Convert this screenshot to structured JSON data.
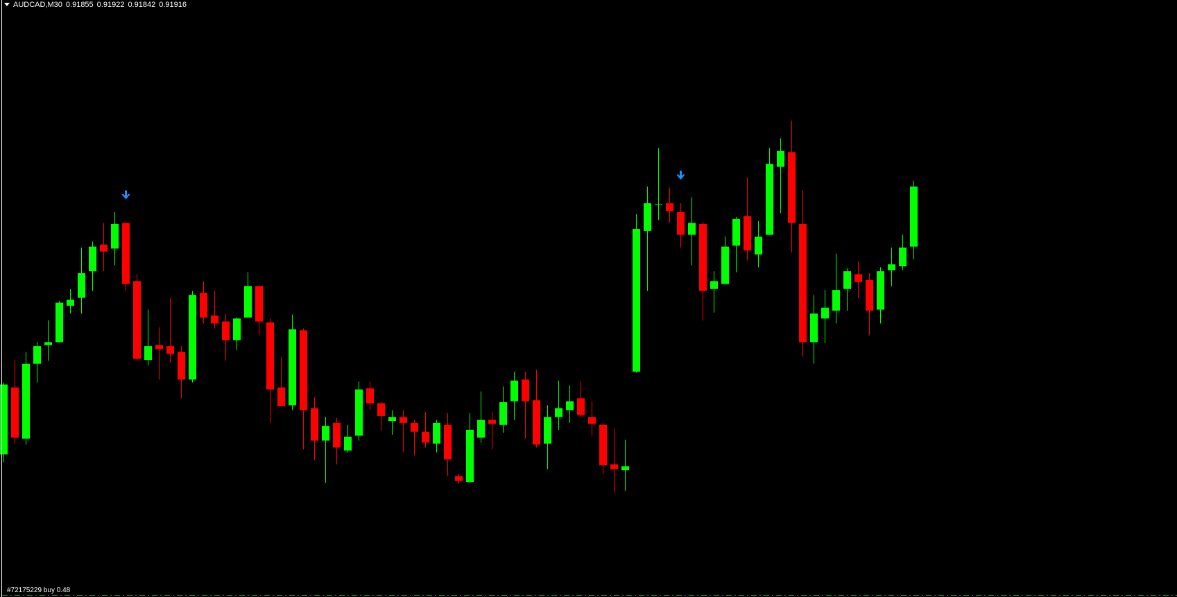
{
  "header": {
    "symbol_timeframe": "AUDCAD,M30",
    "open": "0.91855",
    "high": "0.91922",
    "low": "0.91842",
    "close": "0.91916"
  },
  "order_line": {
    "label": "#72175229 buy 0.48",
    "color": "#00c800"
  },
  "chart_data": {
    "type": "candlestick",
    "symbol": "AUDCAD",
    "timeframe": "M30",
    "ohlc_order": [
      "open",
      "high",
      "low",
      "close"
    ],
    "colors": {
      "bull": "#00ff00",
      "bear": "#ff0000",
      "signal_arrow": "#1e90ff",
      "background": "#000000"
    },
    "grid": false,
    "candles": [
      [
        0.91644,
        0.91717,
        0.91636,
        0.91715
      ],
      [
        0.91712,
        0.9174,
        0.91655,
        0.91661
      ],
      [
        0.9166,
        0.91748,
        0.91654,
        0.91736
      ],
      [
        0.91736,
        0.91758,
        0.91717,
        0.91754
      ],
      [
        0.91755,
        0.9178,
        0.91739,
        0.91758
      ],
      [
        0.91758,
        0.918,
        0.91758,
        0.91798
      ],
      [
        0.91795,
        0.91812,
        0.91787,
        0.91801
      ],
      [
        0.91803,
        0.91854,
        0.91787,
        0.91828
      ],
      [
        0.9183,
        0.9186,
        0.9181,
        0.91855
      ],
      [
        0.91857,
        0.91879,
        0.9183,
        0.9185
      ],
      [
        0.91853,
        0.9189,
        0.91836,
        0.91878
      ],
      [
        0.91879,
        0.91879,
        0.9181,
        0.91817
      ],
      [
        0.9182,
        0.91827,
        0.91739,
        0.91741
      ],
      [
        0.9174,
        0.91791,
        0.91734,
        0.91754
      ],
      [
        0.91755,
        0.91773,
        0.9172,
        0.91751
      ],
      [
        0.91754,
        0.91803,
        0.91737,
        0.91746
      ],
      [
        0.91748,
        0.91754,
        0.91701,
        0.9172
      ],
      [
        0.9172,
        0.9181,
        0.91717,
        0.91806
      ],
      [
        0.91808,
        0.9182,
        0.91777,
        0.91783
      ],
      [
        0.91785,
        0.9181,
        0.91772,
        0.91777
      ],
      [
        0.91779,
        0.91787,
        0.91739,
        0.9176
      ],
      [
        0.9176,
        0.91783,
        0.9175,
        0.91782
      ],
      [
        0.91783,
        0.91829,
        0.91783,
        0.91815
      ],
      [
        0.91815,
        0.91815,
        0.91765,
        0.91779
      ],
      [
        0.91778,
        0.91782,
        0.91676,
        0.9171
      ],
      [
        0.91712,
        0.91743,
        0.91693,
        0.91693
      ],
      [
        0.91694,
        0.91786,
        0.91689,
        0.91771
      ],
      [
        0.9177,
        0.91772,
        0.91649,
        0.91689
      ],
      [
        0.91691,
        0.91702,
        0.91638,
        0.91658
      ],
      [
        0.91658,
        0.91682,
        0.91615,
        0.91673
      ],
      [
        0.91676,
        0.91681,
        0.91634,
        0.91651
      ],
      [
        0.91648,
        0.91674,
        0.91646,
        0.91662
      ],
      [
        0.91663,
        0.91718,
        0.91658,
        0.9171
      ],
      [
        0.91711,
        0.91718,
        0.91689,
        0.91696
      ],
      [
        0.91696,
        0.91697,
        0.91668,
        0.91683
      ],
      [
        0.91678,
        0.91689,
        0.91664,
        0.91682
      ],
      [
        0.91682,
        0.91689,
        0.91646,
        0.91676
      ],
      [
        0.91676,
        0.91679,
        0.91643,
        0.91667
      ],
      [
        0.91667,
        0.91687,
        0.91651,
        0.91656
      ],
      [
        0.91655,
        0.91679,
        0.91646,
        0.91676
      ],
      [
        0.91674,
        0.91686,
        0.91622,
        0.91639
      ],
      [
        0.91622,
        0.91624,
        0.91614,
        0.91617
      ],
      [
        0.91616,
        0.91686,
        0.91615,
        0.91669
      ],
      [
        0.91661,
        0.91708,
        0.91656,
        0.91679
      ],
      [
        0.91679,
        0.91687,
        0.91649,
        0.91675
      ],
      [
        0.91674,
        0.91713,
        0.91666,
        0.91697
      ],
      [
        0.91698,
        0.91728,
        0.91679,
        0.91719
      ],
      [
        0.9172,
        0.91728,
        0.9166,
        0.91698
      ],
      [
        0.91699,
        0.9173,
        0.91651,
        0.91654
      ],
      [
        0.91655,
        0.91694,
        0.91629,
        0.91682
      ],
      [
        0.91682,
        0.91719,
        0.91669,
        0.91691
      ],
      [
        0.91689,
        0.91714,
        0.91676,
        0.91698
      ],
      [
        0.91701,
        0.91718,
        0.91682,
        0.91684
      ],
      [
        0.91682,
        0.91698,
        0.91663,
        0.91675
      ],
      [
        0.91674,
        0.91676,
        0.91624,
        0.91633
      ],
      [
        0.91634,
        0.9167,
        0.91605,
        0.91629
      ],
      [
        0.91628,
        0.91659,
        0.91607,
        0.91632
      ],
      [
        0.91728,
        0.91888,
        0.91727,
        0.91873
      ],
      [
        0.91871,
        0.91916,
        0.9181,
        0.91899
      ],
      [
        0.91898,
        0.91955,
        0.91882,
        0.91898
      ],
      [
        0.91899,
        0.91915,
        0.91879,
        0.91891
      ],
      [
        0.9189,
        0.91899,
        0.91854,
        0.91867
      ],
      [
        0.91867,
        0.91905,
        0.91836,
        0.91879
      ],
      [
        0.91878,
        0.9188,
        0.9178,
        0.9181
      ],
      [
        0.91812,
        0.9183,
        0.91788,
        0.9182
      ],
      [
        0.91817,
        0.91865,
        0.91817,
        0.91855
      ],
      [
        0.91856,
        0.91885,
        0.91829,
        0.91883
      ],
      [
        0.91886,
        0.91925,
        0.91841,
        0.91851
      ],
      [
        0.91847,
        0.91881,
        0.91834,
        0.91865
      ],
      [
        0.91867,
        0.91955,
        0.91867,
        0.91939
      ],
      [
        0.91936,
        0.91965,
        0.91889,
        0.91952
      ],
      [
        0.91951,
        0.91983,
        0.91849,
        0.91879
      ],
      [
        0.91878,
        0.91912,
        0.91743,
        0.91758
      ],
      [
        0.91758,
        0.91806,
        0.91736,
        0.91787
      ],
      [
        0.91782,
        0.91811,
        0.91757,
        0.91793
      ],
      [
        0.9179,
        0.91848,
        0.91777,
        0.91811
      ],
      [
        0.91812,
        0.91833,
        0.9179,
        0.9183
      ],
      [
        0.91827,
        0.9184,
        0.91803,
        0.91819
      ],
      [
        0.91821,
        0.91828,
        0.91765,
        0.9179
      ],
      [
        0.91791,
        0.91834,
        0.91777,
        0.9183
      ],
      [
        0.91831,
        0.91854,
        0.91815,
        0.91837
      ],
      [
        0.91835,
        0.91867,
        0.91831,
        0.91854
      ],
      [
        0.91855,
        0.91922,
        0.91842,
        0.91916
      ]
    ],
    "signal_arrows": [
      {
        "candle_index": 11,
        "direction": "down"
      },
      {
        "candle_index": 61,
        "direction": "down"
      }
    ]
  }
}
